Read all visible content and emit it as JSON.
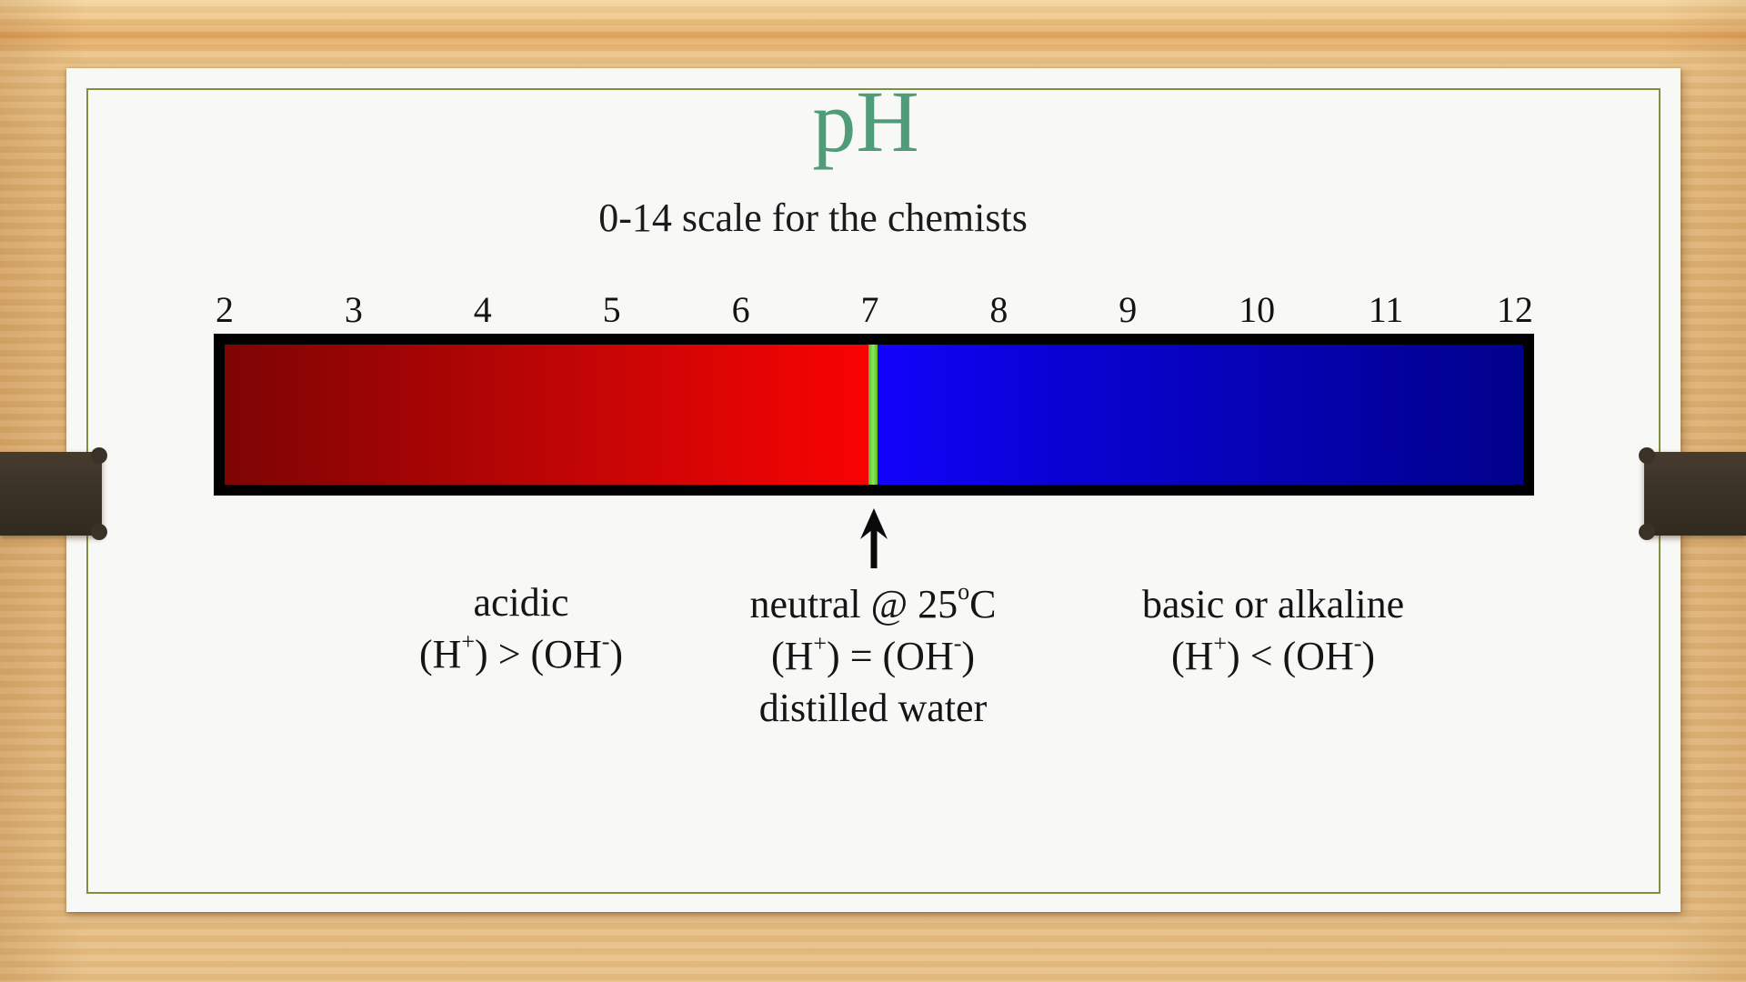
{
  "slide": {
    "title": "pH",
    "subtitle": "0-14 scale for the chemists"
  },
  "scale": {
    "ticks": [
      "2",
      "3",
      "4",
      "5",
      "6",
      "7",
      "8",
      "9",
      "10",
      "11",
      "12"
    ],
    "neutral_at": "7"
  },
  "labels": {
    "acid": {
      "title": "acidic",
      "f": [
        "(H",
        "+",
        ") > (OH",
        "-",
        ")"
      ]
    },
    "neutral": {
      "t": [
        "neutral @ 25",
        "o",
        "C"
      ],
      "f": [
        "(H",
        "+",
        ") = (OH",
        "-",
        ")"
      ],
      "note": "distilled water"
    },
    "base": {
      "title": "basic or alkaline",
      "f": [
        "(H",
        "+",
        ") < (OH",
        "-",
        ")"
      ]
    }
  },
  "colors": {
    "title_green": "#4F9C78",
    "border_olive": "#7E9141",
    "acid_dark": "#7E0404",
    "acid_mid": "#C90505",
    "acid_bright": "#FA0202",
    "neutral_green": "#6CCE33",
    "base_bright": "#1203FA",
    "base_mid": "#0A02D6",
    "base_dark": "#01018B",
    "bar_border": "#000000",
    "clip_brown": "#3B3227"
  }
}
